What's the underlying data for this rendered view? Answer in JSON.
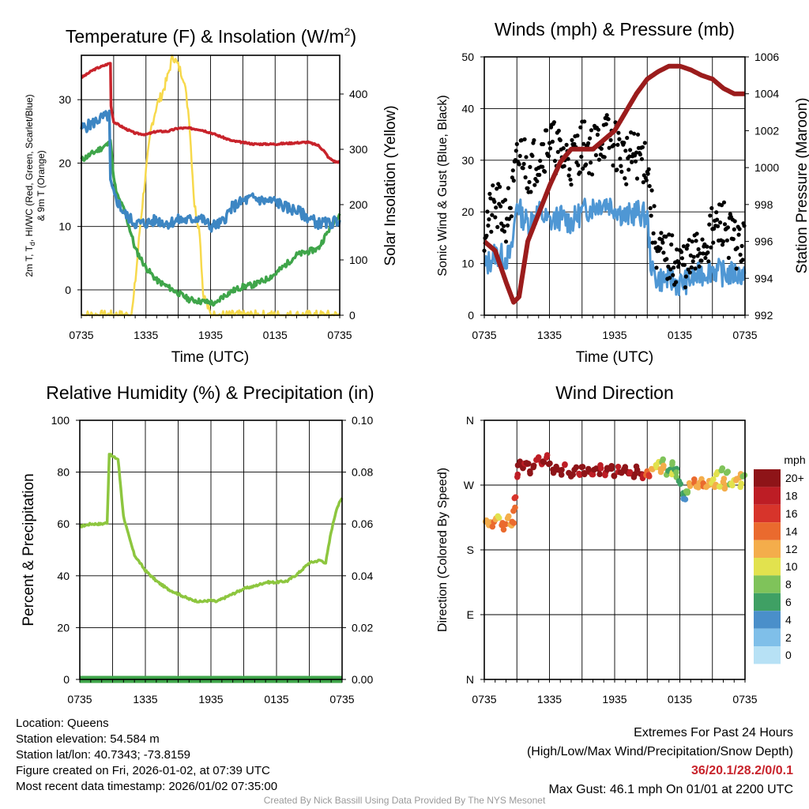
{
  "chart_data": [
    {
      "type": "line",
      "title": "Temperature (F) & Insolation (W/m²)",
      "title_main": "Temperature (F) & Insolation (W/m",
      "title_sup": "2",
      "title_end": ")",
      "xlabel": "Time (UTC)",
      "ylabel_left_1": "2m T, T",
      "ylabel_left_sub": "d",
      "ylabel_left_2": ", HI/WC (Red, Green, Scarlet/Blue)",
      "ylabel_left_line2": "& 9m T (Orange)",
      "ylabel_right": "Solar Insolation (Yellow)",
      "x_ticks": [
        "0735",
        "1335",
        "1935",
        "0135",
        "0735"
      ],
      "ylim": [
        -4,
        37
      ],
      "y_ticks": [
        0,
        10,
        20,
        30
      ],
      "y2lim": [
        0,
        470
      ],
      "y2_ticks": [
        0,
        100,
        200,
        300,
        400
      ],
      "series": [
        {
          "name": "2m T",
          "color": "#c8232b",
          "axis": "left",
          "x": [
            0,
            0.5,
            1,
            1.5,
            2,
            2.7,
            2.75,
            3,
            4,
            5,
            6,
            7,
            8,
            9,
            10,
            11,
            12,
            14,
            16,
            18,
            20,
            21,
            22,
            22.5,
            23,
            23.6,
            24
          ],
          "values": [
            33.5,
            34,
            34.6,
            35,
            35.3,
            35.8,
            29,
            26.5,
            25.5,
            24.7,
            24.5,
            25,
            25,
            25.5,
            25.5,
            25.3,
            24.8,
            23.5,
            23,
            23,
            23.2,
            23.3,
            22.8,
            22,
            20.8,
            20.2,
            20.2
          ]
        },
        {
          "name": "Td",
          "color": "#3fa54a",
          "axis": "left",
          "x": [
            0,
            1,
            2,
            2.5,
            2.7,
            3,
            3.3,
            4,
            4.6,
            5,
            6,
            7,
            8,
            9,
            10,
            11,
            12,
            12.5,
            13,
            14,
            15,
            16,
            17,
            18,
            19,
            20,
            21,
            22,
            22.5,
            23,
            23.5,
            24
          ],
          "values": [
            20.5,
            21.5,
            22.5,
            23,
            24,
            17.5,
            15,
            12.5,
            9,
            6.5,
            3.5,
            1.5,
            0.5,
            -0.5,
            -1.5,
            -1.8,
            -2,
            -2.3,
            -1.2,
            -0.2,
            0.5,
            0.8,
            1.5,
            2.5,
            4,
            5.5,
            6,
            6.5,
            8,
            9.5,
            11,
            12
          ]
        },
        {
          "name": "HI/WC",
          "color": "#3d86c3",
          "axis": "left",
          "x": [
            0,
            0.5,
            1,
            1.5,
            2,
            2.6,
            2.7,
            3,
            4,
            5,
            6,
            7,
            8,
            9,
            10,
            11,
            12,
            13,
            14,
            15,
            16,
            17,
            18,
            19,
            20,
            21,
            22,
            23,
            24
          ],
          "values": [
            25.5,
            25.8,
            26.2,
            26.8,
            27.2,
            27.5,
            17,
            15,
            12,
            10.5,
            10.5,
            11,
            10.5,
            11,
            11,
            11.5,
            10,
            10.5,
            13,
            14,
            14.5,
            14,
            14,
            13,
            12.5,
            11.5,
            10.5,
            10.5,
            11
          ]
        },
        {
          "name": "Solar Insolation",
          "color": "#f7d94c",
          "axis": "right",
          "x": [
            0,
            4.5,
            4.8,
            5.1,
            5.5,
            6,
            6.5,
            7,
            7.5,
            8,
            8.5,
            9,
            9.5,
            10,
            10.5,
            11,
            11.3,
            12,
            24
          ],
          "values": [
            0,
            0,
            20,
            80,
            170,
            260,
            340,
            380,
            400,
            430,
            470,
            450,
            430,
            360,
            200,
            150,
            40,
            0,
            0
          ]
        }
      ]
    },
    {
      "type": "scatter",
      "title": "Winds (mph) & Pressure (mb)",
      "xlabel": "Time (UTC)",
      "ylabel": "Sonic Wind & Gust (Blue, Black)",
      "ylabel_right": "Station Pressure (Maroon)",
      "x_ticks": [
        "0735",
        "1335",
        "1935",
        "0135",
        "0735"
      ],
      "ylim": [
        0,
        50
      ],
      "y_ticks": [
        0,
        10,
        20,
        30,
        40,
        50
      ],
      "y2lim": [
        992,
        1006
      ],
      "y2_ticks": [
        992,
        994,
        996,
        998,
        1000,
        1002,
        1004,
        1006
      ],
      "series": [
        {
          "name": "Sonic Wind",
          "color": "#4f97d4",
          "axis": "left",
          "x": [
            0,
            1,
            2,
            2.5,
            3,
            3.5,
            4,
            5,
            6,
            7,
            8,
            9,
            10,
            11,
            12,
            13,
            14,
            15,
            15.3,
            15.5,
            16,
            17,
            18,
            19,
            20,
            21,
            22,
            23,
            24
          ],
          "values": [
            9,
            12,
            11,
            12,
            22,
            19,
            18,
            20,
            18,
            19,
            18,
            20,
            21,
            22,
            21,
            19,
            20,
            19,
            11,
            8,
            7,
            7,
            6,
            7,
            8,
            9,
            8,
            8,
            8
          ]
        },
        {
          "name": "Gust",
          "color": "#000000",
          "axis": "left",
          "x": [
            0,
            1,
            2,
            2.5,
            3,
            3.5,
            4,
            5,
            6,
            7,
            8,
            9,
            10,
            11,
            12,
            13,
            14,
            15,
            15.5,
            16,
            17,
            18,
            19,
            20,
            21,
            22,
            23,
            24
          ],
          "values": [
            17,
            21,
            19,
            22,
            29,
            32,
            28,
            31,
            34,
            31,
            30,
            33,
            32,
            35,
            33,
            30,
            31,
            30,
            18,
            12,
            11,
            10,
            10,
            13,
            16,
            18,
            14,
            13
          ]
        },
        {
          "name": "Station Pressure",
          "color": "#9b1c1c",
          "axis": "right",
          "x": [
            0,
            1,
            2,
            2.7,
            3.2,
            4,
            5,
            6,
            7,
            8,
            9,
            10,
            11,
            12,
            13,
            14,
            15,
            16,
            17,
            18,
            19,
            20,
            21,
            22,
            23,
            24
          ],
          "values": [
            996,
            995.5,
            993.8,
            992.7,
            993,
            996,
            997.5,
            999,
            1000.3,
            1001,
            1001,
            1001,
            1001.5,
            1002,
            1003,
            1004,
            1004.8,
            1005.2,
            1005.5,
            1005.5,
            1005.3,
            1005,
            1004.8,
            1004.3,
            1004,
            1004
          ]
        }
      ]
    },
    {
      "type": "line",
      "title": "Relative Humidity (%) & Precipitation (in)",
      "ylabel": "Percent & Precipitation",
      "x_ticks": [
        "0735",
        "1335",
        "1935",
        "0135",
        "0735"
      ],
      "ylim": [
        0,
        100
      ],
      "y_ticks": [
        "0",
        "20",
        "40",
        "60",
        "80",
        "100"
      ],
      "y2lim": [
        0,
        0.1
      ],
      "y2_ticks": [
        "0.00",
        "0.02",
        "0.04",
        "0.06",
        "0.08",
        "0.10"
      ],
      "series": [
        {
          "name": "Relative Humidity",
          "color": "#8dc63f",
          "axis": "left",
          "x": [
            0,
            0.5,
            1,
            1.5,
            2,
            2.5,
            2.7,
            3,
            3.5,
            4,
            4.5,
            5,
            6,
            7,
            8,
            9,
            10,
            11,
            12,
            12.5,
            13,
            14,
            15,
            16,
            17,
            18,
            19,
            20,
            21,
            22,
            22.5,
            23,
            23.5,
            24
          ],
          "values": [
            59,
            59.5,
            60,
            60,
            60,
            60.5,
            87,
            86,
            85,
            63,
            55,
            48,
            42,
            38,
            35,
            33,
            31,
            30,
            30.5,
            30,
            31,
            33,
            35,
            36,
            37.5,
            37.5,
            38,
            41,
            45,
            46,
            45,
            57,
            66,
            70
          ]
        },
        {
          "name": "Precipitation",
          "color": "#3fa54a",
          "axis": "right",
          "x": [
            0,
            24
          ],
          "values": [
            0,
            0
          ]
        }
      ]
    },
    {
      "type": "scatter",
      "title": "Wind Direction",
      "ylabel": "Direction (Colored By Speed)",
      "x_ticks": [
        "0735",
        "1335",
        "1935",
        "0135",
        "0735"
      ],
      "y_ticks": [
        "N",
        "E",
        "S",
        "W",
        "N"
      ],
      "ylim": [
        0,
        360
      ],
      "colorbar_title": "mph",
      "colorbar_labels": [
        "0",
        "2",
        "4",
        "6",
        "8",
        "10",
        "12",
        "14",
        "16",
        "18",
        "20+"
      ],
      "colorbar_colors": [
        "#b7e1f5",
        "#7fbfe9",
        "#4a8fca",
        "#3fa064",
        "#7fc35a",
        "#e2e24e",
        "#f4ad4b",
        "#ea6a2e",
        "#d7342b",
        "#bd1d25",
        "#8e1418"
      ],
      "points": [
        [
          0.2,
          220,
          12
        ],
        [
          0.5,
          218,
          12
        ],
        [
          0.8,
          215,
          13
        ],
        [
          1.1,
          222,
          12
        ],
        [
          1.3,
          225,
          10
        ],
        [
          1.6,
          218,
          13
        ],
        [
          1.9,
          212,
          14
        ],
        [
          2.2,
          224,
          12
        ],
        [
          2.4,
          215,
          11
        ],
        [
          2.6,
          220,
          13
        ],
        [
          2.75,
          235,
          14
        ],
        [
          2.85,
          250,
          15
        ],
        [
          3.0,
          282,
          18
        ],
        [
          3.2,
          295,
          20
        ],
        [
          3.4,
          300,
          19
        ],
        [
          3.6,
          292,
          20
        ],
        [
          3.8,
          297,
          18
        ],
        [
          4.0,
          302,
          20
        ],
        [
          4.3,
          290,
          19
        ],
        [
          4.6,
          294,
          20
        ],
        [
          4.9,
          305,
          18
        ],
        [
          5.2,
          298,
          17
        ],
        [
          5.5,
          300,
          20
        ],
        [
          5.8,
          310,
          18
        ],
        [
          6.0,
          303,
          19
        ],
        [
          6.3,
          288,
          20
        ],
        [
          6.6,
          295,
          20
        ],
        [
          6.9,
          292,
          19
        ],
        [
          7.2,
          288,
          20
        ],
        [
          7.5,
          296,
          18
        ],
        [
          7.8,
          290,
          20
        ],
        [
          8.1,
          284,
          19
        ],
        [
          8.4,
          292,
          20
        ],
        [
          8.7,
          288,
          18
        ],
        [
          9.0,
          294,
          20
        ],
        [
          9.3,
          286,
          19
        ],
        [
          9.6,
          290,
          20
        ],
        [
          9.9,
          282,
          18
        ],
        [
          10.2,
          292,
          20
        ],
        [
          10.5,
          288,
          19
        ],
        [
          10.8,
          294,
          17
        ],
        [
          11.1,
          286,
          18
        ],
        [
          11.4,
          290,
          20
        ],
        [
          11.7,
          296,
          20
        ],
        [
          12.0,
          284,
          19
        ],
        [
          12.3,
          292,
          18
        ],
        [
          12.6,
          288,
          20
        ],
        [
          12.9,
          294,
          19
        ],
        [
          13.2,
          286,
          20
        ],
        [
          13.5,
          290,
          18
        ],
        [
          13.8,
          284,
          20
        ],
        [
          14.1,
          292,
          19
        ],
        [
          14.4,
          288,
          20
        ],
        [
          14.7,
          283,
          18
        ],
        [
          15.0,
          286,
          14
        ],
        [
          15.2,
          282,
          16
        ],
        [
          15.5,
          292,
          12
        ],
        [
          15.8,
          296,
          10
        ],
        [
          16.0,
          300,
          9
        ],
        [
          16.2,
          290,
          11
        ],
        [
          16.4,
          302,
          8
        ],
        [
          16.6,
          294,
          12
        ],
        [
          16.8,
          285,
          7
        ],
        [
          17.0,
          292,
          6
        ],
        [
          17.2,
          300,
          8
        ],
        [
          17.4,
          288,
          10
        ],
        [
          17.6,
          292,
          6
        ],
        [
          17.8,
          284,
          7
        ],
        [
          18.0,
          275,
          5
        ],
        [
          18.2,
          258,
          6
        ],
        [
          18.4,
          252,
          4
        ],
        [
          18.6,
          262,
          7
        ],
        [
          18.8,
          258,
          8
        ],
        [
          19.0,
          270,
          12
        ],
        [
          19.3,
          274,
          13
        ],
        [
          19.6,
          270,
          11
        ],
        [
          19.9,
          276,
          12
        ],
        [
          20.2,
          272,
          13
        ],
        [
          20.5,
          266,
          12
        ],
        [
          20.8,
          272,
          11
        ],
        [
          21.0,
          276,
          10
        ],
        [
          21.2,
          270,
          12
        ],
        [
          21.4,
          284,
          9
        ],
        [
          21.6,
          270,
          10
        ],
        [
          21.8,
          292,
          8
        ],
        [
          22.0,
          276,
          12
        ],
        [
          22.2,
          268,
          11
        ],
        [
          22.4,
          285,
          7
        ],
        [
          22.6,
          274,
          8
        ],
        [
          22.8,
          270,
          9
        ],
        [
          23.0,
          280,
          10
        ],
        [
          23.3,
          276,
          12
        ],
        [
          23.5,
          283,
          11
        ],
        [
          23.7,
          270,
          9
        ],
        [
          23.9,
          284,
          8
        ]
      ]
    }
  ],
  "info": {
    "location": "Location: Queens",
    "elevation": "Station elevation: 54.584 m",
    "latlon": "Station lat/lon: 40.7343; -73.8159",
    "created": "Figure created on Fri, 2026-01-02, at 07:39 UTC",
    "recent": "Most recent data timestamp: 2026/01/02 07:35:00"
  },
  "extremes": {
    "title": "Extremes For Past 24 Hours",
    "subtitle": "(High/Low/Max Wind/Precipitation/Snow Depth)",
    "values": "36/20.1/28.2/0/0.1",
    "gust": "Max Gust: 46.1 mph On 01/01 at 2200 UTC"
  },
  "credit": "Created By Nick Bassill Using Data Provided By The NYS Mesonet"
}
